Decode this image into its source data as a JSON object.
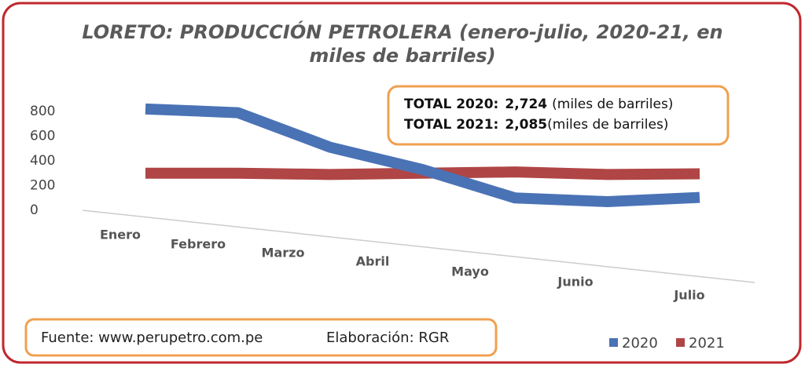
{
  "chart_data": {
    "type": "line",
    "title": "LORETO: PRODUCCIÓN PETROLERA (enero-julio, 2020-21, en miles de barriles)",
    "categories": [
      "Enero",
      "Febrero",
      "Marzo",
      "Abril",
      "Mayo",
      "Junio",
      "Julio"
    ],
    "series": [
      {
        "name": "2020",
        "color": "#4a73b5",
        "values": [
          820,
          790,
          510,
          330,
          100,
          70,
          104
        ]
      },
      {
        "name": "2021",
        "color": "#b04545",
        "values": [
          300,
          300,
          290,
          300,
          310,
          290,
          295
        ]
      }
    ],
    "ylim": [
      0,
      800
    ],
    "yticks": [
      0,
      200,
      400,
      600,
      800
    ],
    "grid": false,
    "annotations": [
      {
        "label": "TOTAL 2020:",
        "value": "2,724",
        "unit": "(miles de barriles)"
      },
      {
        "label": "TOTAL 2021:",
        "value": "2,085",
        "unit": "(miles de barriles)"
      }
    ],
    "source": "Fuente: www.perupetro.com.pe",
    "credit": "Elaboración: RGR",
    "legend": "bottom-right"
  }
}
